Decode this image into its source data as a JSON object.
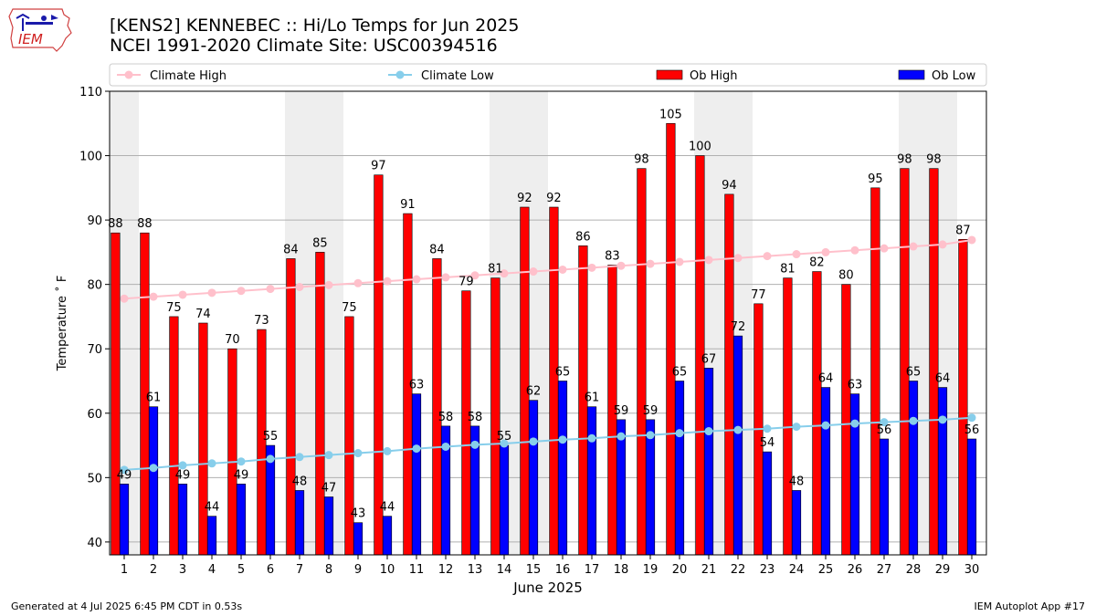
{
  "header": {
    "title_line1": "[KENS2] KENNEBEC :: Hi/Lo Temps for Jun 2025",
    "title_line2": "NCEI 1991-2020 Climate Site: USC00394516",
    "logo_text": "IEM"
  },
  "footer": {
    "generated": "Generated at 4 Jul 2025 6:45 PM CDT in 0.53s",
    "app": "IEM Autoplot App #17"
  },
  "colors": {
    "ob_high": "#ff0000",
    "ob_low": "#0000ff",
    "climate_high": "#ffc0cb",
    "climate_low": "#87ceeb",
    "weekend_shade": "#eeeeee",
    "grid": "#b0b0b0"
  },
  "chart_data": {
    "type": "bar",
    "xlabel": "June 2025",
    "ylabel": "Temperature ˚ F",
    "ylim": [
      38,
      110
    ],
    "yticks": [
      40,
      50,
      60,
      70,
      80,
      90,
      100,
      110
    ],
    "grid": "horizontal",
    "legend_placement": "top",
    "categories": [
      "1",
      "2",
      "3",
      "4",
      "5",
      "6",
      "7",
      "8",
      "9",
      "10",
      "11",
      "12",
      "13",
      "14",
      "15",
      "16",
      "17",
      "18",
      "19",
      "20",
      "21",
      "22",
      "23",
      "24",
      "25",
      "26",
      "27",
      "28",
      "29",
      "30"
    ],
    "shaded_days": [
      1,
      7,
      8,
      14,
      15,
      21,
      22,
      28,
      29
    ],
    "series": [
      {
        "name": "Climate High",
        "kind": "line",
        "values": [
          77.8,
          78.1,
          78.4,
          78.7,
          79.0,
          79.3,
          79.6,
          79.9,
          80.2,
          80.5,
          80.8,
          81.1,
          81.4,
          81.7,
          82.0,
          82.3,
          82.6,
          82.9,
          83.2,
          83.5,
          83.8,
          84.1,
          84.4,
          84.7,
          85.0,
          85.3,
          85.6,
          85.9,
          86.2,
          86.9
        ]
      },
      {
        "name": "Climate Low",
        "kind": "line",
        "values": [
          51.2,
          51.5,
          51.9,
          52.2,
          52.5,
          52.9,
          53.2,
          53.5,
          53.8,
          54.1,
          54.5,
          54.8,
          55.1,
          55.3,
          55.6,
          55.9,
          56.1,
          56.4,
          56.6,
          56.9,
          57.2,
          57.4,
          57.6,
          57.9,
          58.1,
          58.4,
          58.6,
          58.8,
          59.0,
          59.3
        ]
      },
      {
        "name": "Ob High",
        "kind": "bar",
        "values": [
          88,
          88,
          75,
          74,
          70,
          73,
          84,
          85,
          75,
          97,
          91,
          84,
          79,
          81,
          92,
          92,
          86,
          83,
          98,
          105,
          100,
          94,
          77,
          81,
          82,
          80,
          95,
          98,
          98,
          87
        ]
      },
      {
        "name": "Ob Low",
        "kind": "bar",
        "values": [
          49,
          61,
          49,
          44,
          49,
          55,
          48,
          47,
          43,
          44,
          63,
          58,
          58,
          55,
          62,
          65,
          61,
          59,
          59,
          65,
          67,
          72,
          54,
          48,
          64,
          63,
          56,
          65,
          64,
          56
        ]
      }
    ]
  }
}
